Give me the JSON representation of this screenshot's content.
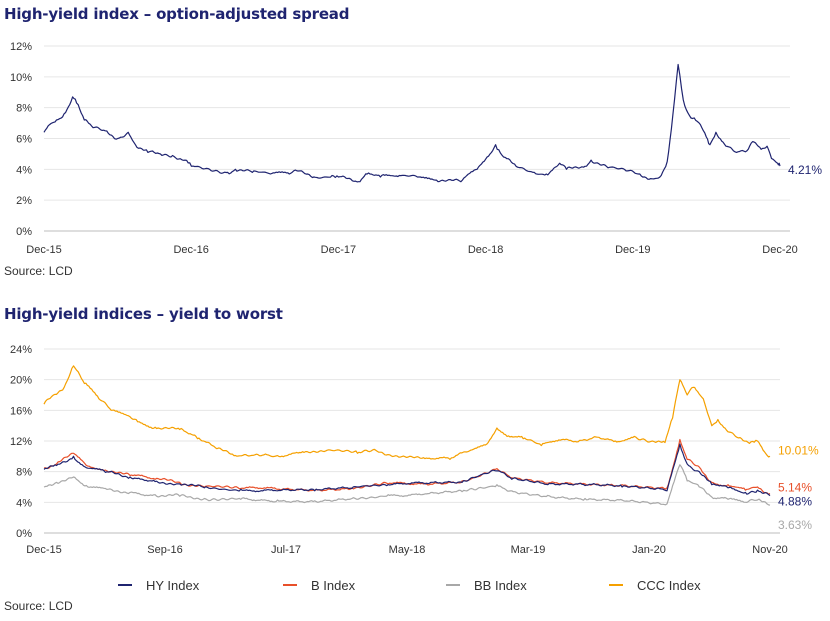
{
  "chart_data": [
    {
      "type": "line",
      "title": "High-yield index – option-adjusted spread",
      "source": "Source: LCD",
      "y_ticks": [
        "12%",
        "10%",
        "8%",
        "6%",
        "4%",
        "2%",
        "0%"
      ],
      "ylim": [
        0,
        12
      ],
      "x_ticks": [
        "Dec-15",
        "Dec-16",
        "Dec-17",
        "Dec-18",
        "Dec-19",
        "Dec-20"
      ],
      "xlim": [
        "2015-12-01",
        "2020-12-01"
      ],
      "series": [
        {
          "color": "#1f2470",
          "end_label": "4.21%",
          "points": [
            [
              "2015-12-01",
              6.4
            ],
            [
              "2015-12-15",
              6.9
            ],
            [
              "2016-01-01",
              7.2
            ],
            [
              "2016-01-20",
              7.6
            ],
            [
              "2016-02-10",
              8.7
            ],
            [
              "2016-02-20",
              8.3
            ],
            [
              "2016-03-10",
              7.2
            ],
            [
              "2016-04-01",
              6.7
            ],
            [
              "2016-05-01",
              6.5
            ],
            [
              "2016-06-01",
              6.0
            ],
            [
              "2016-06-27",
              6.4
            ],
            [
              "2016-07-15",
              5.6
            ],
            [
              "2016-08-15",
              5.1
            ],
            [
              "2016-09-15",
              5.0
            ],
            [
              "2016-10-15",
              4.9
            ],
            [
              "2016-11-15",
              4.6
            ],
            [
              "2016-12-01",
              4.2
            ],
            [
              "2017-01-15",
              4.0
            ],
            [
              "2017-03-01",
              3.8
            ],
            [
              "2017-03-20",
              4.0
            ],
            [
              "2017-05-01",
              3.8
            ],
            [
              "2017-06-15",
              3.7
            ],
            [
              "2017-08-01",
              3.7
            ],
            [
              "2017-08-20",
              3.9
            ],
            [
              "2017-10-01",
              3.5
            ],
            [
              "2017-11-15",
              3.6
            ],
            [
              "2017-12-01",
              3.5
            ],
            [
              "2018-01-20",
              3.2
            ],
            [
              "2018-02-10",
              3.7
            ],
            [
              "2018-03-15",
              3.5
            ],
            [
              "2018-05-01",
              3.6
            ],
            [
              "2018-06-15",
              3.5
            ],
            [
              "2018-08-01",
              3.3
            ],
            [
              "2018-10-01",
              3.2
            ],
            [
              "2018-11-10",
              4.0
            ],
            [
              "2018-12-05",
              4.8
            ],
            [
              "2018-12-26",
              5.6
            ],
            [
              "2019-01-15",
              4.8
            ],
            [
              "2019-02-15",
              4.2
            ],
            [
              "2019-04-01",
              3.8
            ],
            [
              "2019-05-01",
              3.7
            ],
            [
              "2019-06-03",
              4.4
            ],
            [
              "2019-06-20",
              4.0
            ],
            [
              "2019-08-05",
              4.2
            ],
            [
              "2019-08-20",
              4.6
            ],
            [
              "2019-10-01",
              4.1
            ],
            [
              "2019-11-15",
              3.9
            ],
            [
              "2019-12-15",
              3.7
            ],
            [
              "2020-01-15",
              3.4
            ],
            [
              "2020-02-10",
              3.6
            ],
            [
              "2020-02-25",
              4.5
            ],
            [
              "2020-03-10",
              7.5
            ],
            [
              "2020-03-23",
              10.8
            ],
            [
              "2020-04-05",
              8.5
            ],
            [
              "2020-04-20",
              7.5
            ],
            [
              "2020-05-10",
              7.1
            ],
            [
              "2020-06-01",
              6.1
            ],
            [
              "2020-06-10",
              5.6
            ],
            [
              "2020-06-25",
              6.4
            ],
            [
              "2020-07-20",
              5.5
            ],
            [
              "2020-08-15",
              5.1
            ],
            [
              "2020-09-10",
              5.2
            ],
            [
              "2020-09-24",
              5.8
            ],
            [
              "2020-10-15",
              5.3
            ],
            [
              "2020-10-30",
              5.5
            ],
            [
              "2020-11-10",
              4.7
            ],
            [
              "2020-11-25",
              4.4
            ],
            [
              "2020-12-01",
              4.21
            ]
          ]
        }
      ]
    },
    {
      "type": "line",
      "title": "High-yield indices – yield to worst",
      "source": "Source: LCD",
      "y_ticks": [
        "24%",
        "20%",
        "16%",
        "12%",
        "8%",
        "4%",
        "0%"
      ],
      "ylim": [
        0,
        24
      ],
      "x_ticks": [
        "Dec-15",
        "Sep-16",
        "Jul-17",
        "May-18",
        "Mar-19",
        "Jan-20",
        "Nov-20"
      ],
      "xlim": [
        "2015-12-01",
        "2020-11-01"
      ],
      "legend": [
        "HY Index",
        "B Index",
        "BB Index",
        "CCC Index"
      ],
      "series": [
        {
          "name": "CCC Index",
          "color": "#f5a000",
          "end_label": "10.01%",
          "points": [
            [
              "2015-12-01",
              16.8
            ],
            [
              "2015-12-20",
              17.8
            ],
            [
              "2016-01-20",
              19.0
            ],
            [
              "2016-02-12",
              21.8
            ],
            [
              "2016-03-10",
              19.5
            ],
            [
              "2016-04-15",
              17.5
            ],
            [
              "2016-05-15",
              16.0
            ],
            [
              "2016-06-27",
              15.3
            ],
            [
              "2016-07-20",
              14.5
            ],
            [
              "2016-09-01",
              13.8
            ],
            [
              "2016-11-01",
              13.5
            ],
            [
              "2016-12-15",
              12.3
            ],
            [
              "2017-02-01",
              11.0
            ],
            [
              "2017-03-15",
              10.1
            ],
            [
              "2017-06-01",
              10.3
            ],
            [
              "2017-07-01",
              10.1
            ],
            [
              "2017-09-01",
              10.6
            ],
            [
              "2017-11-01",
              10.8
            ],
            [
              "2018-01-15",
              10.4
            ],
            [
              "2018-03-01",
              10.8
            ],
            [
              "2018-05-01",
              9.9
            ],
            [
              "2018-07-01",
              9.7
            ],
            [
              "2018-09-01",
              9.6
            ],
            [
              "2018-10-15",
              10.6
            ],
            [
              "2018-12-01",
              11.6
            ],
            [
              "2018-12-26",
              13.7
            ],
            [
              "2019-01-20",
              12.6
            ],
            [
              "2019-03-01",
              12.3
            ],
            [
              "2019-04-15",
              11.4
            ],
            [
              "2019-06-01",
              12.1
            ],
            [
              "2019-07-15",
              11.9
            ],
            [
              "2019-09-01",
              12.5
            ],
            [
              "2019-10-15",
              12.0
            ],
            [
              "2019-12-01",
              12.6
            ],
            [
              "2020-01-15",
              12.0
            ],
            [
              "2020-02-15",
              11.8
            ],
            [
              "2020-03-05",
              15.0
            ],
            [
              "2020-03-23",
              20.0
            ],
            [
              "2020-04-10",
              18.0
            ],
            [
              "2020-04-25",
              19.0
            ],
            [
              "2020-05-20",
              17.5
            ],
            [
              "2020-06-10",
              14.0
            ],
            [
              "2020-06-25",
              14.8
            ],
            [
              "2020-07-20",
              13.2
            ],
            [
              "2020-08-15",
              12.4
            ],
            [
              "2020-09-15",
              11.9
            ],
            [
              "2020-10-01",
              12.0
            ],
            [
              "2020-10-15",
              10.8
            ],
            [
              "2020-11-01",
              10.01
            ]
          ]
        },
        {
          "name": "B Index",
          "color": "#e8502a",
          "end_label": "5.14%",
          "points": [
            [
              "2015-12-01",
              8.5
            ],
            [
              "2016-01-01",
              9.0
            ],
            [
              "2016-02-12",
              10.4
            ],
            [
              "2016-03-15",
              8.8
            ],
            [
              "2016-05-01",
              8.2
            ],
            [
              "2016-07-01",
              7.5
            ],
            [
              "2016-09-01",
              7.0
            ],
            [
              "2016-11-01",
              6.6
            ],
            [
              "2017-01-01",
              6.0
            ],
            [
              "2017-04-01",
              5.8
            ],
            [
              "2017-07-01",
              5.7
            ],
            [
              "2017-10-01",
              5.6
            ],
            [
              "2018-01-01",
              5.9
            ],
            [
              "2018-04-01",
              6.4
            ],
            [
              "2018-07-01",
              6.5
            ],
            [
              "2018-10-01",
              6.8
            ],
            [
              "2018-12-26",
              8.4
            ],
            [
              "2019-02-01",
              7.2
            ],
            [
              "2019-05-01",
              6.5
            ],
            [
              "2019-08-01",
              6.4
            ],
            [
              "2019-11-01",
              6.3
            ],
            [
              "2020-02-20",
              5.9
            ],
            [
              "2020-03-23",
              12.2
            ],
            [
              "2020-04-10",
              9.6
            ],
            [
              "2020-05-10",
              8.6
            ],
            [
              "2020-06-10",
              6.6
            ],
            [
              "2020-07-20",
              6.3
            ],
            [
              "2020-09-01",
              5.6
            ],
            [
              "2020-10-01",
              6.0
            ],
            [
              "2020-11-01",
              5.14
            ]
          ]
        },
        {
          "name": "HY Index",
          "color": "#1f2470",
          "end_label": "4.88%",
          "points": [
            [
              "2015-12-01",
              8.3
            ],
            [
              "2016-01-01",
              8.8
            ],
            [
              "2016-02-12",
              10.0
            ],
            [
              "2016-03-15",
              8.5
            ],
            [
              "2016-05-01",
              7.9
            ],
            [
              "2016-07-01",
              7.3
            ],
            [
              "2016-09-01",
              6.7
            ],
            [
              "2016-11-01",
              6.4
            ],
            [
              "2017-01-01",
              5.9
            ],
            [
              "2017-04-01",
              5.7
            ],
            [
              "2017-07-01",
              5.5
            ],
            [
              "2017-10-01",
              5.5
            ],
            [
              "2018-01-01",
              5.8
            ],
            [
              "2018-04-01",
              6.3
            ],
            [
              "2018-07-01",
              6.4
            ],
            [
              "2018-10-01",
              6.6
            ],
            [
              "2018-12-26",
              8.1
            ],
            [
              "2019-02-01",
              7.0
            ],
            [
              "2019-05-01",
              6.3
            ],
            [
              "2019-08-01",
              6.2
            ],
            [
              "2019-11-01",
              6.0
            ],
            [
              "2020-02-20",
              5.5
            ],
            [
              "2020-03-23",
              11.6
            ],
            [
              "2020-04-10",
              9.0
            ],
            [
              "2020-05-10",
              8.0
            ],
            [
              "2020-06-10",
              6.3
            ],
            [
              "2020-07-20",
              5.9
            ],
            [
              "2020-09-01",
              5.3
            ],
            [
              "2020-10-01",
              5.6
            ],
            [
              "2020-11-01",
              4.88
            ]
          ]
        },
        {
          "name": "BB Index",
          "color": "#a8a8a8",
          "end_label": "3.63%",
          "points": [
            [
              "2015-12-01",
              6.0
            ],
            [
              "2016-01-01",
              6.6
            ],
            [
              "2016-02-12",
              7.3
            ],
            [
              "2016-03-15",
              6.2
            ],
            [
              "2016-05-01",
              5.8
            ],
            [
              "2016-07-01",
              5.3
            ],
            [
              "2016-09-01",
              5.0
            ],
            [
              "2016-11-01",
              4.8
            ],
            [
              "2017-01-01",
              4.5
            ],
            [
              "2017-04-01",
              4.4
            ],
            [
              "2017-07-01",
              4.3
            ],
            [
              "2017-10-01",
              4.2
            ],
            [
              "2018-01-01",
              4.5
            ],
            [
              "2018-04-01",
              5.0
            ],
            [
              "2018-07-01",
              5.1
            ],
            [
              "2018-10-01",
              5.4
            ],
            [
              "2018-12-26",
              6.3
            ],
            [
              "2019-02-01",
              5.5
            ],
            [
              "2019-05-01",
              4.9
            ],
            [
              "2019-08-01",
              4.5
            ],
            [
              "2019-11-01",
              4.3
            ],
            [
              "2020-02-20",
              3.8
            ],
            [
              "2020-03-23",
              8.9
            ],
            [
              "2020-04-10",
              6.8
            ],
            [
              "2020-05-10",
              6.0
            ],
            [
              "2020-06-10",
              4.7
            ],
            [
              "2020-07-20",
              4.4
            ],
            [
              "2020-09-01",
              4.0
            ],
            [
              "2020-10-01",
              4.3
            ],
            [
              "2020-11-01",
              3.63
            ]
          ]
        }
      ]
    }
  ]
}
